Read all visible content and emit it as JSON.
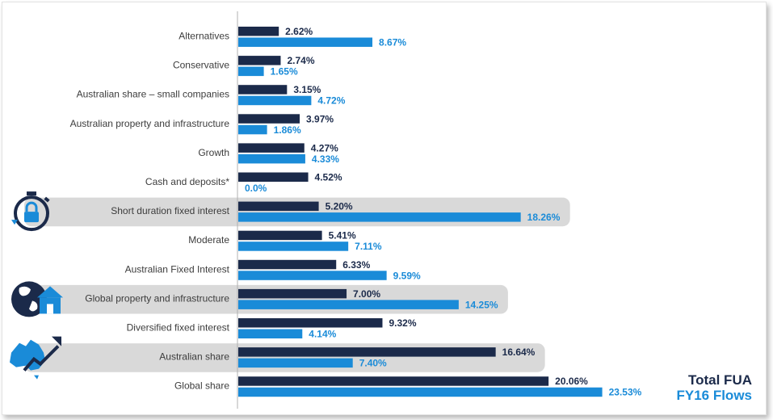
{
  "chart_data": {
    "type": "bar",
    "orientation": "horizontal",
    "categories": [
      "Alternatives",
      "Conservative",
      "Australian share – small companies",
      "Australian property and infrastructure",
      "Growth",
      "Cash and deposits*",
      "Short duration fixed interest",
      "Moderate",
      "Australian Fixed Interest",
      "Global property and infrastructure",
      "Diversified fixed interest",
      "Australian share",
      "Global share"
    ],
    "series": [
      {
        "name": "Total FUA",
        "values": [
          2.62,
          2.74,
          3.15,
          3.97,
          4.27,
          4.52,
          5.2,
          5.41,
          6.33,
          7.0,
          9.32,
          16.64,
          20.06
        ],
        "labels": [
          "2.62%",
          "2.74%",
          "3.15%",
          "3.97%",
          "4.27%",
          "4.52%",
          "5.20%",
          "5.41%",
          "6.33%",
          "7.00%",
          "9.32%",
          "16.64%",
          "20.06%"
        ],
        "color": "#1b2a4a"
      },
      {
        "name": "FY16 Flows",
        "values": [
          8.67,
          1.65,
          4.72,
          1.86,
          4.33,
          0.0,
          18.26,
          7.11,
          9.59,
          14.25,
          4.14,
          7.4,
          23.53
        ],
        "labels": [
          "8.67%",
          "1.65%",
          "4.72%",
          "1.86%",
          "4.33%",
          "0.0%",
          "18.26%",
          "7.11%",
          "9.59%",
          "14.25%",
          "4.14%",
          "7.40%",
          "23.53%"
        ],
        "color": "#1a8bd8"
      }
    ],
    "highlighted_categories": [
      "Short duration fixed interest",
      "Global property and infrastructure",
      "Australian share"
    ],
    "legend_placement": "bottom-right",
    "grid": false,
    "xlim": [
      0,
      24
    ],
    "title": "",
    "xlabel": "",
    "ylabel": ""
  },
  "icons": {
    "Short duration fixed interest": "stopwatch-lock-icon",
    "Global property and infrastructure": "globe-house-icon",
    "Australian share": "australia-map-trend-icon"
  },
  "colors": {
    "highlight_band": "#d9d9d9",
    "axis_line": "#b0b0b0",
    "icon_color": "#1b2a4a",
    "icon_accent": "#1a8bd8"
  }
}
